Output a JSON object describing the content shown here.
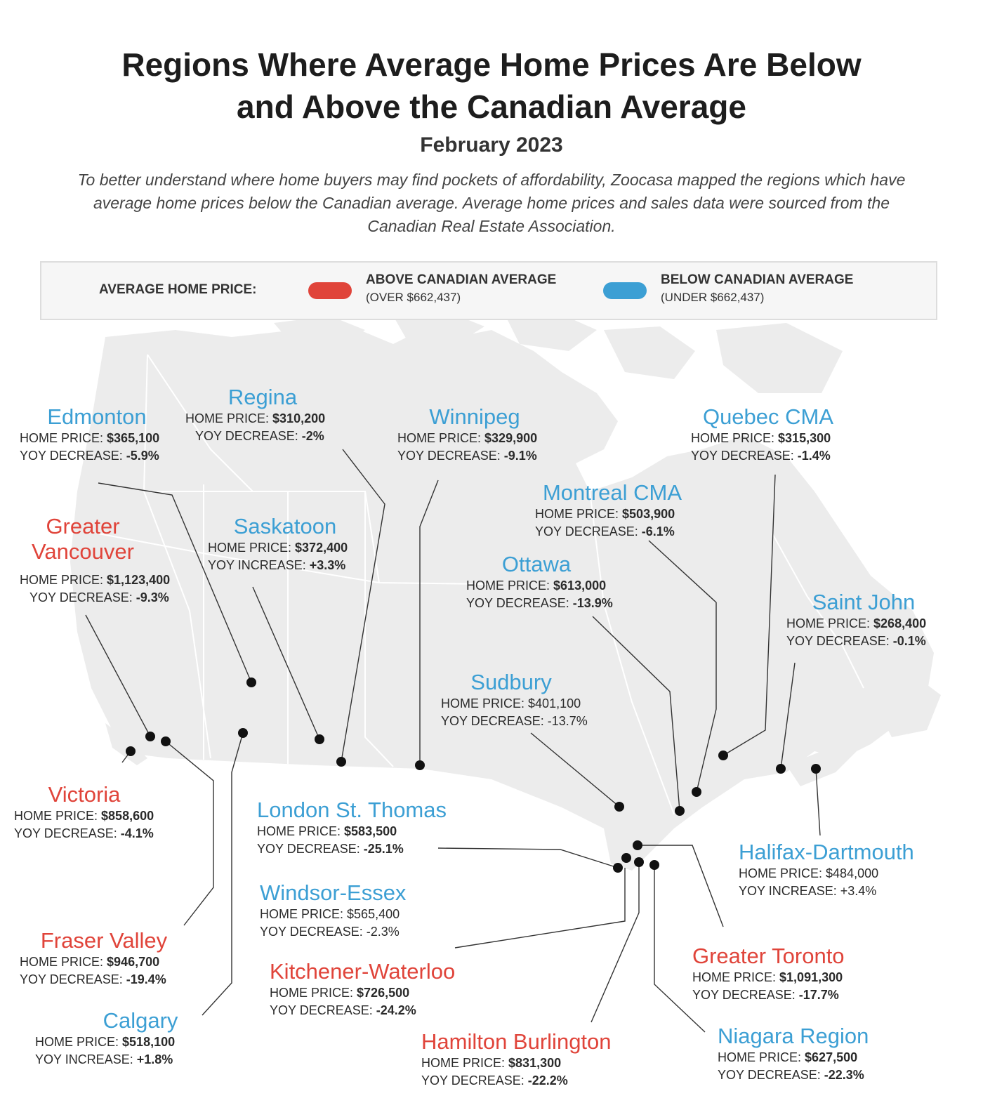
{
  "header": {
    "title_line1": "Regions Where Average Home Prices Are Below",
    "title_line2": "and Above the Canadian Average",
    "subtitle": "February 2023",
    "intro": "To better understand where home buyers may find pockets of affordability, Zoocasa mapped the regions which have average home prices below the Canadian average. Average home prices and sales data were sourced from the Canadian Real Estate Association."
  },
  "legend": {
    "label": "AVERAGE HOME PRICE:",
    "above_title": "ABOVE CANADIAN AVERAGE",
    "above_sub": "(OVER  $662,437)",
    "below_title": "BELOW CANADIAN AVERAGE",
    "below_sub": "(UNDER  $662,437)"
  },
  "colors": {
    "above": "#e0443a",
    "below": "#3c9fd4",
    "land": "#ececec",
    "border": "#ffffff",
    "leader": "#333333",
    "dot": "#111111"
  },
  "price_label": "HOME PRICE:",
  "regions": [
    {
      "name": "Edmonton",
      "status": "below",
      "price": "$365,100",
      "change_label": "YOY DECREASE:",
      "change": "-5.9%"
    },
    {
      "name": "Regina",
      "status": "below",
      "price": "$310,200",
      "change_label": "YOY DECREASE:",
      "change": "-2%"
    },
    {
      "name": "Winnipeg",
      "status": "below",
      "price": "$329,900",
      "change_label": "YOY DECREASE:",
      "change": "-9.1%"
    },
    {
      "name": "Quebec CMA",
      "status": "below",
      "price": "$315,300",
      "change_label": "YOY DECREASE:",
      "change": "-1.4%"
    },
    {
      "name": "Montreal CMA",
      "status": "below",
      "price": "$503,900",
      "change_label": "YOY DECREASE:",
      "change": "-6.1%"
    },
    {
      "name": "Greater Vancouver",
      "name_line1": "Greater",
      "name_line2": "Vancouver",
      "status": "above",
      "price": "$1,123,400",
      "change_label": "YOY DECREASE:",
      "change": "-9.3%"
    },
    {
      "name": "Saskatoon",
      "status": "below",
      "price": "$372,400",
      "change_label": "YOY INCREASE:",
      "change": "+3.3%"
    },
    {
      "name": "Ottawa",
      "status": "below",
      "price": "$613,000",
      "change_label": "YOY DECREASE:",
      "change": "-13.9%"
    },
    {
      "name": "Saint John",
      "status": "below",
      "price": "$268,400",
      "change_label": "YOY DECREASE:",
      "change": "-0.1%"
    },
    {
      "name": "Sudbury",
      "status": "below",
      "price": "$401,100",
      "change_label": "YOY DECREASE:",
      "change": "-13.7%"
    },
    {
      "name": "Victoria",
      "status": "above",
      "price": "$858,600",
      "change_label": "YOY DECREASE:",
      "change": "-4.1%"
    },
    {
      "name": "London St. Thomas",
      "status": "below",
      "price": "$583,500",
      "change_label": "YOY DECREASE:",
      "change": "-25.1%"
    },
    {
      "name": "Halifax-Dartmouth",
      "status": "below",
      "price": "$484,000",
      "change_label": "YOY INCREASE:",
      "change": "+3.4%"
    },
    {
      "name": "Windsor-Essex",
      "status": "below",
      "price": "$565,400",
      "change_label": "YOY DECREASE:",
      "change": "-2.3%"
    },
    {
      "name": "Fraser Valley",
      "status": "above",
      "price": "$946,700",
      "change_label": "YOY DECREASE:",
      "change": "-19.4%"
    },
    {
      "name": "Kitchener-Waterloo",
      "status": "above",
      "price": "$726,500",
      "change_label": "YOY DECREASE:",
      "change": "-24.2%"
    },
    {
      "name": "Greater Toronto",
      "status": "above",
      "price": "$1,091,300",
      "change_label": "YOY DECREASE:",
      "change": "-17.7%"
    },
    {
      "name": "Calgary",
      "status": "below",
      "price": "$518,100",
      "change_label": "YOY INCREASE:",
      "change": "+1.8%"
    },
    {
      "name": "Hamilton Burlington",
      "status": "above",
      "price": "$831,300",
      "change_label": "YOY DECREASE:",
      "change": "-22.2%"
    },
    {
      "name": "Niagara Region",
      "status": "below",
      "price": "$627,500",
      "change_label": "YOY DECREASE:",
      "change": "-22.3%"
    }
  ]
}
